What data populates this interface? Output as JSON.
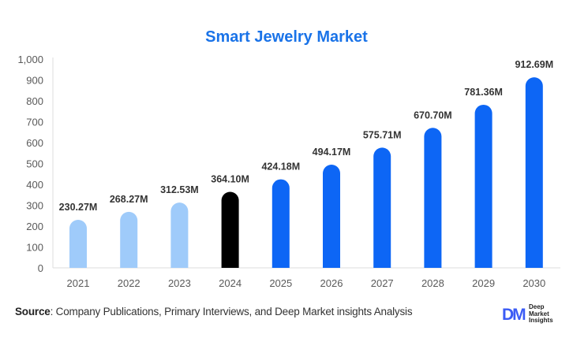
{
  "chart_data": {
    "type": "bar",
    "title": "Smart Jewelry Market",
    "categories": [
      "2021",
      "2022",
      "2023",
      "2024",
      "2025",
      "2026",
      "2027",
      "2028",
      "2029",
      "2030"
    ],
    "values": [
      230.27,
      268.27,
      312.53,
      364.1,
      424.18,
      494.17,
      575.71,
      670.7,
      781.36,
      912.69
    ],
    "data_labels": [
      "230.27M",
      "268.27M",
      "312.53M",
      "364.10M",
      "424.18M",
      "494.17M",
      "575.71M",
      "670.70M",
      "781.36M",
      "912.69M"
    ],
    "bar_colors": [
      "#9fcbfa",
      "#9fcbfa",
      "#9fcbfa",
      "#000000",
      "#0d66f5",
      "#0d66f5",
      "#0d66f5",
      "#0d66f5",
      "#0d66f5",
      "#0d66f5"
    ],
    "ylim": [
      0,
      1000
    ],
    "yticks": [
      "0",
      "100",
      "200",
      "300",
      "400",
      "500",
      "600",
      "700",
      "800",
      "900",
      "1,000"
    ],
    "xlabel": "",
    "ylabel": "",
    "grid": false,
    "title_color": "#1a73e8"
  },
  "footer": {
    "source_label": "Source",
    "source_text": ": Company Publications, Primary Interviews, and Deep Market insights Analysis",
    "logo_mark": "DM",
    "logo_text": "Deep Market Insights"
  }
}
